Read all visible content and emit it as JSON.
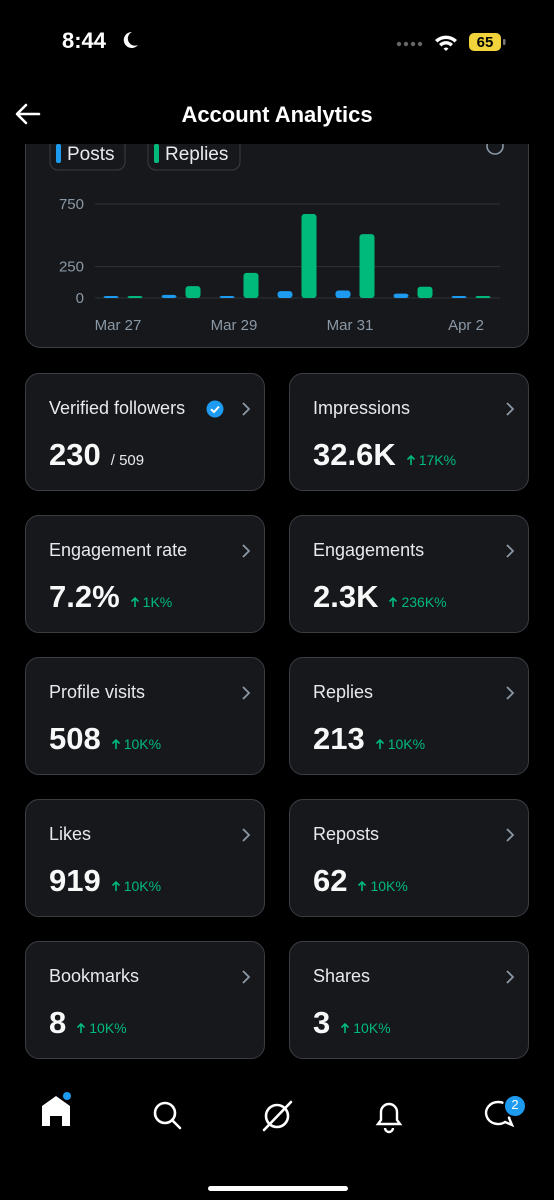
{
  "status_bar": {
    "time": "8:44",
    "battery": "65"
  },
  "header": {
    "title": "Account Analytics"
  },
  "chart": {
    "type": "bar",
    "categories": [
      "Mar 27",
      null,
      "Mar 29",
      null,
      "Mar 31",
      null,
      "Apr 2"
    ],
    "series": [
      {
        "name": "Posts",
        "color": "#1d9bf0",
        "values": [
          2,
          25,
          10,
          55,
          60,
          35,
          3
        ]
      },
      {
        "name": "Replies",
        "color": "#00ba7c",
        "values": [
          3,
          95,
          200,
          670,
          510,
          90,
          4
        ]
      }
    ],
    "ylim": [
      0,
      750
    ],
    "yticks": [
      0,
      250,
      750
    ],
    "grid": true
  },
  "metrics": [
    {
      "label": "Verified followers",
      "value": "230",
      "total": "/ 509"
    },
    {
      "label": "Impressions",
      "value": "32.6K",
      "change": "17K%"
    },
    {
      "label": "Engagement rate",
      "value": "7.2%",
      "change": "1K%"
    },
    {
      "label": "Engagements",
      "value": "2.3K",
      "change": "236K%"
    },
    {
      "label": "Profile visits",
      "value": "508",
      "change": "10K%"
    },
    {
      "label": "Replies",
      "value": "213",
      "change": "10K%"
    },
    {
      "label": "Likes",
      "value": "919",
      "change": "10K%"
    },
    {
      "label": "Reposts",
      "value": "62",
      "change": "10K%"
    },
    {
      "label": "Bookmarks",
      "value": "8",
      "change": "10K%"
    },
    {
      "label": "Shares",
      "value": "3",
      "change": "10K%"
    }
  ],
  "nav": {
    "messages_badge": "2"
  }
}
